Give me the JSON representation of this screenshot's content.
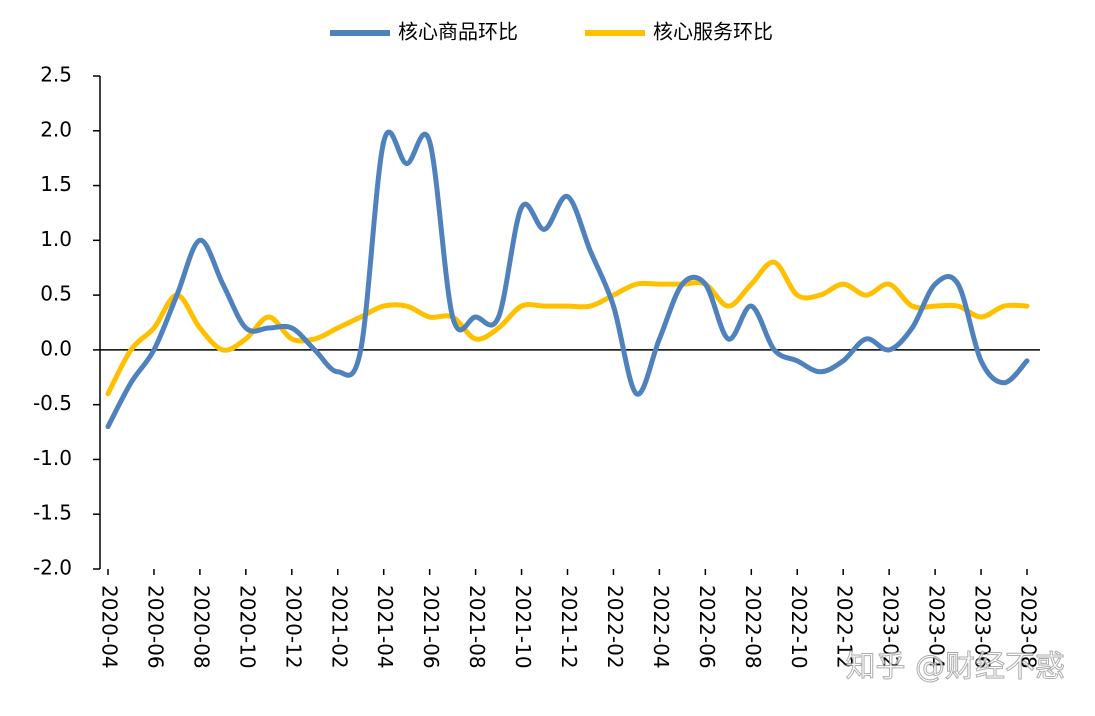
{
  "chart_data": {
    "type": "line",
    "categories": [
      "2020-04",
      null,
      "2020-06",
      null,
      "2020-08",
      null,
      "2020-10",
      null,
      "2020-12",
      null,
      "2021-02",
      null,
      "2021-04",
      null,
      "2021-06",
      null,
      "2021-08",
      null,
      "2021-10",
      null,
      "2021-12",
      null,
      "2022-02",
      null,
      "2022-04",
      null,
      "2022-06",
      null,
      "2022-08",
      null,
      "2022-10",
      null,
      "2022-12",
      null,
      "2023-02",
      null,
      "2023-04",
      null,
      "2023-06",
      null,
      "2023-08"
    ],
    "series": [
      {
        "name": "核心商品环比",
        "color": "#4f81bd",
        "values": [
          -0.7,
          -0.3,
          0.0,
          0.5,
          1.0,
          0.6,
          0.2,
          0.2,
          0.2,
          0.0,
          -0.2,
          0.0,
          1.9,
          1.7,
          1.9,
          0.3,
          0.3,
          0.3,
          1.3,
          1.1,
          1.4,
          0.9,
          0.4,
          -0.4,
          0.1,
          0.6,
          0.6,
          0.1,
          0.4,
          0.0,
          -0.1,
          -0.2,
          -0.1,
          0.1,
          0.0,
          0.2,
          0.6,
          0.6,
          -0.1,
          -0.3,
          -0.1
        ]
      },
      {
        "name": "核心服务环比",
        "color": "#ffc000",
        "values": [
          -0.4,
          0.0,
          0.2,
          0.5,
          0.2,
          0.0,
          0.1,
          0.3,
          0.1,
          0.1,
          0.2,
          0.3,
          0.4,
          0.4,
          0.3,
          0.3,
          0.1,
          0.2,
          0.4,
          0.4,
          0.4,
          0.4,
          0.5,
          0.6,
          0.6,
          0.6,
          0.6,
          0.4,
          0.6,
          0.8,
          0.5,
          0.5,
          0.6,
          0.5,
          0.6,
          0.4,
          0.4,
          0.4,
          0.3,
          0.4,
          0.4
        ]
      }
    ],
    "ylim": [
      -2.0,
      2.5
    ],
    "yticks": [
      {
        "value": -2.0,
        "label": "-2.0"
      },
      -1.5,
      {
        "value": -1.0,
        "label": "-1.0"
      },
      -0.5,
      {
        "value": 0.0,
        "label": "0.0"
      },
      0.5,
      {
        "value": 1.0,
        "label": "1.0"
      },
      1.5,
      {
        "value": 2.0,
        "label": "2.0"
      },
      2.5
    ],
    "legend": "top",
    "grid": false,
    "watermark": "知乎 @财经不惑"
  }
}
